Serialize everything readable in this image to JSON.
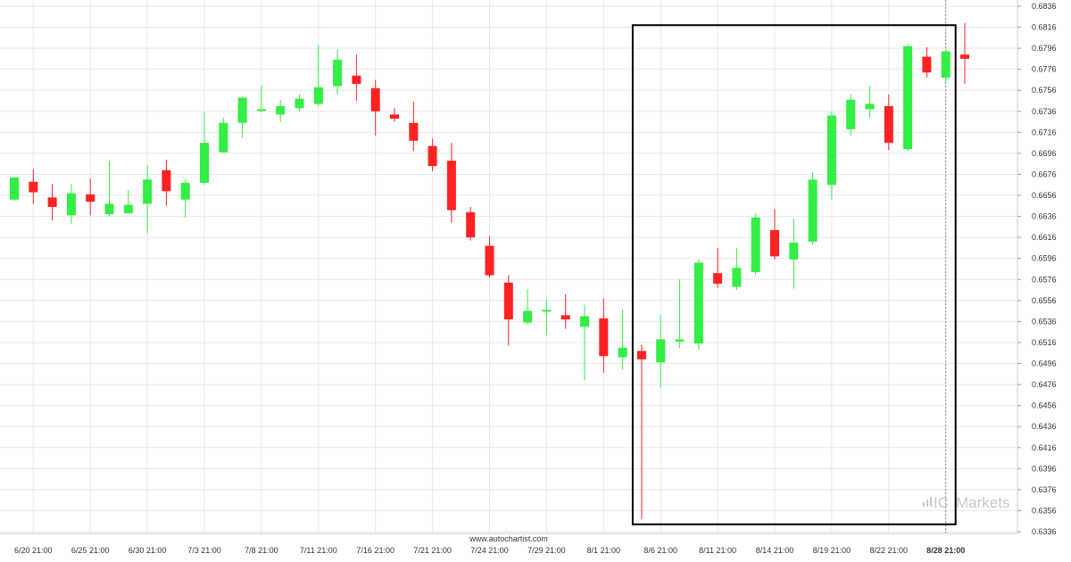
{
  "watermark": {
    "url": "www.autochartist.com",
    "brand": "Markets",
    "brand_prefix": "IC"
  },
  "chart_data": {
    "type": "candlestick",
    "title": "",
    "xlabel": "",
    "ylabel": "",
    "ylim": [
      0.6336,
      0.6836
    ],
    "ytick_labels": [
      "0.6836",
      "0.6816",
      "0.6796",
      "0.6776",
      "0.6756",
      "0.6736",
      "0.6716",
      "0.6696",
      "0.6676",
      "0.6656",
      "0.6636",
      "0.6616",
      "0.6596",
      "0.6576",
      "0.6556",
      "0.6536",
      "0.6516",
      "0.6496",
      "0.6476",
      "0.6456",
      "0.6436",
      "0.6416",
      "0.6396",
      "0.6376",
      "0.6356",
      "0.6336"
    ],
    "xtick_labels": [
      {
        "label": "6/20 21:00",
        "index": 1
      },
      {
        "label": "6/25 21:00",
        "index": 4
      },
      {
        "label": "6/30 21:00",
        "index": 7
      },
      {
        "label": "7/3 21:00",
        "index": 10
      },
      {
        "label": "7/8 21:00",
        "index": 13
      },
      {
        "label": "7/11 21:00",
        "index": 16
      },
      {
        "label": "7/16 21:00",
        "index": 19
      },
      {
        "label": "7/21 21:00",
        "index": 22
      },
      {
        "label": "7/24 21:00",
        "index": 25
      },
      {
        "label": "7/29 21:00",
        "index": 28
      },
      {
        "label": "8/1 21:00",
        "index": 31
      },
      {
        "label": "8/6 21:00",
        "index": 34
      },
      {
        "label": "8/11 21:00",
        "index": 37
      },
      {
        "label": "8/14 21:00",
        "index": 40
      },
      {
        "label": "8/19 21:00",
        "index": 43
      },
      {
        "label": "8/22 21:00",
        "index": 46
      },
      {
        "label": "8/28 21:00",
        "index": 49,
        "bold": true
      }
    ],
    "candles": [
      {
        "o": 0.6652,
        "h": 0.6673,
        "l": 0.6651,
        "c": 0.6673
      },
      {
        "o": 0.6669,
        "h": 0.6681,
        "l": 0.6648,
        "c": 0.6659
      },
      {
        "o": 0.6654,
        "h": 0.6667,
        "l": 0.6632,
        "c": 0.6645
      },
      {
        "o": 0.6637,
        "h": 0.6667,
        "l": 0.6629,
        "c": 0.6658
      },
      {
        "o": 0.6657,
        "h": 0.6672,
        "l": 0.6637,
        "c": 0.665
      },
      {
        "o": 0.6638,
        "h": 0.6689,
        "l": 0.6636,
        "c": 0.6648
      },
      {
        "o": 0.6639,
        "h": 0.6661,
        "l": 0.6639,
        "c": 0.6647
      },
      {
        "o": 0.6648,
        "h": 0.6685,
        "l": 0.662,
        "c": 0.6671
      },
      {
        "o": 0.668,
        "h": 0.669,
        "l": 0.6646,
        "c": 0.666
      },
      {
        "o": 0.6652,
        "h": 0.6671,
        "l": 0.6635,
        "c": 0.6668
      },
      {
        "o": 0.6668,
        "h": 0.6735,
        "l": 0.6666,
        "c": 0.6706
      },
      {
        "o": 0.6697,
        "h": 0.673,
        "l": 0.6697,
        "c": 0.6725
      },
      {
        "o": 0.6725,
        "h": 0.675,
        "l": 0.6711,
        "c": 0.6749
      },
      {
        "o": 0.6737,
        "h": 0.6761,
        "l": 0.6735,
        "c": 0.6738
      },
      {
        "o": 0.6733,
        "h": 0.6747,
        "l": 0.6726,
        "c": 0.6741
      },
      {
        "o": 0.6739,
        "h": 0.6752,
        "l": 0.6736,
        "c": 0.6748
      },
      {
        "o": 0.6743,
        "h": 0.6799,
        "l": 0.6741,
        "c": 0.6759
      },
      {
        "o": 0.676,
        "h": 0.6795,
        "l": 0.6752,
        "c": 0.6785
      },
      {
        "o": 0.677,
        "h": 0.679,
        "l": 0.6746,
        "c": 0.6762
      },
      {
        "o": 0.6758,
        "h": 0.6766,
        "l": 0.6713,
        "c": 0.6736
      },
      {
        "o": 0.6733,
        "h": 0.6739,
        "l": 0.6726,
        "c": 0.6729
      },
      {
        "o": 0.6725,
        "h": 0.6745,
        "l": 0.6698,
        "c": 0.6708
      },
      {
        "o": 0.6703,
        "h": 0.671,
        "l": 0.6679,
        "c": 0.6684
      },
      {
        "o": 0.6689,
        "h": 0.6706,
        "l": 0.663,
        "c": 0.6642
      },
      {
        "o": 0.664,
        "h": 0.6645,
        "l": 0.6613,
        "c": 0.6616
      },
      {
        "o": 0.6608,
        "h": 0.6617,
        "l": 0.6578,
        "c": 0.658
      },
      {
        "o": 0.6573,
        "h": 0.658,
        "l": 0.6513,
        "c": 0.6538
      },
      {
        "o": 0.6535,
        "h": 0.6567,
        "l": 0.6533,
        "c": 0.6546
      },
      {
        "o": 0.6547,
        "h": 0.6557,
        "l": 0.6523,
        "c": 0.6547
      },
      {
        "o": 0.6542,
        "h": 0.6562,
        "l": 0.6529,
        "c": 0.6538
      },
      {
        "o": 0.6531,
        "h": 0.6552,
        "l": 0.648,
        "c": 0.6541
      },
      {
        "o": 0.6539,
        "h": 0.6558,
        "l": 0.6487,
        "c": 0.6503
      },
      {
        "o": 0.6502,
        "h": 0.6547,
        "l": 0.649,
        "c": 0.6511
      },
      {
        "o": 0.6508,
        "h": 0.6514,
        "l": 0.6348,
        "c": 0.65
      },
      {
        "o": 0.6497,
        "h": 0.6542,
        "l": 0.6473,
        "c": 0.6519
      },
      {
        "o": 0.6517,
        "h": 0.6576,
        "l": 0.6511,
        "c": 0.6519
      },
      {
        "o": 0.6515,
        "h": 0.6595,
        "l": 0.6509,
        "c": 0.6592
      },
      {
        "o": 0.6582,
        "h": 0.6606,
        "l": 0.6568,
        "c": 0.6572
      },
      {
        "o": 0.6569,
        "h": 0.6606,
        "l": 0.6566,
        "c": 0.6587
      },
      {
        "o": 0.6583,
        "h": 0.6639,
        "l": 0.658,
        "c": 0.6635
      },
      {
        "o": 0.6623,
        "h": 0.6643,
        "l": 0.6595,
        "c": 0.6598
      },
      {
        "o": 0.6595,
        "h": 0.6634,
        "l": 0.6567,
        "c": 0.6611
      },
      {
        "o": 0.6612,
        "h": 0.6678,
        "l": 0.6609,
        "c": 0.6671
      },
      {
        "o": 0.6666,
        "h": 0.6736,
        "l": 0.6652,
        "c": 0.6732
      },
      {
        "o": 0.6719,
        "h": 0.6752,
        "l": 0.6713,
        "c": 0.6747
      },
      {
        "o": 0.6738,
        "h": 0.676,
        "l": 0.673,
        "c": 0.6743
      },
      {
        "o": 0.6741,
        "h": 0.6752,
        "l": 0.6699,
        "c": 0.6706
      },
      {
        "o": 0.67,
        "h": 0.68,
        "l": 0.6698,
        "c": 0.6798
      },
      {
        "o": 0.6788,
        "h": 0.6797,
        "l": 0.6768,
        "c": 0.6773
      },
      {
        "o": 0.6768,
        "h": 0.6795,
        "l": 0.6763,
        "c": 0.6793
      },
      {
        "o": 0.679,
        "h": 0.682,
        "l": 0.6762,
        "c": 0.6786
      }
    ],
    "highlight_box": {
      "from_index": 33,
      "to_index": 49,
      "high": 0.6818,
      "low": 0.6343,
      "color": "#000000"
    },
    "current_marker_index": 49,
    "grid": true,
    "colors": {
      "up": "#33ee44",
      "down": "#ff2222",
      "grid": "#e8e8e8",
      "axis": "#cccccc"
    }
  }
}
